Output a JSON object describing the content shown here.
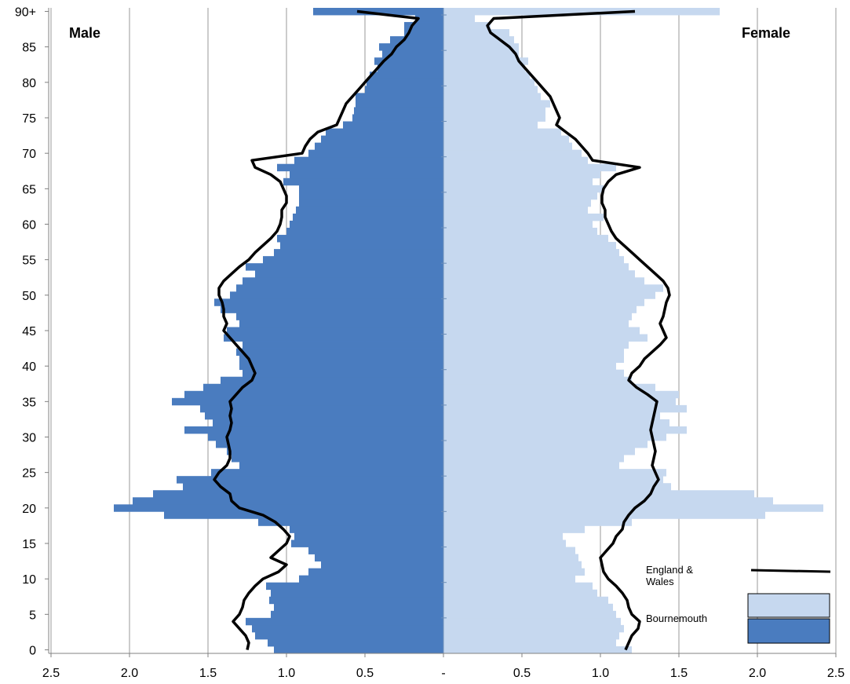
{
  "chart_data": {
    "type": "population-pyramid",
    "left_label": "Male",
    "right_label": "Female",
    "x_axis": {
      "range": [
        -2.5,
        2.5
      ],
      "tick_values": [
        -2.5,
        -2.0,
        -1.5,
        -1.0,
        -0.5,
        0,
        0.5,
        1.0,
        1.5,
        2.0,
        2.5
      ],
      "tick_labels": [
        "2.5",
        "2.0",
        "1.5",
        "1.0",
        "0.5",
        "-",
        "0.5",
        "1.0",
        "1.5",
        "2.0",
        "2.5"
      ],
      "grid": true
    },
    "y_axis": {
      "ages": [
        "0",
        "1",
        "2",
        "3",
        "4",
        "5",
        "6",
        "7",
        "8",
        "9",
        "10",
        "11",
        "12",
        "13",
        "14",
        "15",
        "16",
        "17",
        "18",
        "19",
        "20",
        "21",
        "22",
        "23",
        "24",
        "25",
        "26",
        "27",
        "28",
        "29",
        "30",
        "31",
        "32",
        "33",
        "34",
        "35",
        "36",
        "37",
        "38",
        "39",
        "40",
        "41",
        "42",
        "43",
        "44",
        "45",
        "46",
        "47",
        "48",
        "49",
        "50",
        "51",
        "52",
        "53",
        "54",
        "55",
        "56",
        "57",
        "58",
        "59",
        "60",
        "61",
        "62",
        "63",
        "64",
        "65",
        "66",
        "67",
        "68",
        "69",
        "70",
        "71",
        "72",
        "73",
        "74",
        "75",
        "76",
        "77",
        "78",
        "79",
        "80",
        "81",
        "82",
        "83",
        "84",
        "85",
        "86",
        "87",
        "88",
        "89",
        "90+"
      ],
      "tick_labels": [
        "0",
        "5",
        "10",
        "15",
        "20",
        "25",
        "30",
        "35",
        "40",
        "45",
        "50",
        "55",
        "60",
        "65",
        "70",
        "75",
        "80",
        "85",
        "90+"
      ],
      "tick_ages": [
        0,
        5,
        10,
        15,
        20,
        25,
        30,
        35,
        40,
        45,
        50,
        55,
        60,
        65,
        70,
        75,
        80,
        85,
        90
      ]
    },
    "legend": [
      {
        "label": "England & Wales",
        "marker": "line",
        "color": "#000000"
      },
      {
        "label": "Bournemouth",
        "marker": "box",
        "colors": [
          "#c6d8ef",
          "#4a7cbf"
        ]
      }
    ],
    "series": [
      {
        "name": "Bournemouth",
        "sex": "Male",
        "color": "#4a7cbf",
        "values": [
          1.08,
          1.12,
          1.2,
          1.22,
          1.26,
          1.1,
          1.08,
          1.11,
          1.1,
          1.13,
          0.92,
          0.86,
          0.78,
          0.82,
          0.86,
          0.97,
          0.95,
          0.98,
          1.18,
          1.78,
          2.1,
          1.98,
          1.85,
          1.66,
          1.7,
          1.48,
          1.3,
          1.35,
          1.38,
          1.45,
          1.5,
          1.65,
          1.47,
          1.52,
          1.55,
          1.73,
          1.65,
          1.53,
          1.42,
          1.28,
          1.3,
          1.3,
          1.32,
          1.28,
          1.4,
          1.38,
          1.3,
          1.32,
          1.42,
          1.46,
          1.36,
          1.32,
          1.28,
          1.2,
          1.26,
          1.15,
          1.08,
          1.04,
          1.06,
          1.0,
          0.98,
          0.96,
          0.94,
          0.92,
          0.92,
          0.92,
          1.02,
          0.98,
          1.06,
          0.95,
          0.86,
          0.82,
          0.78,
          0.75,
          0.64,
          0.58,
          0.57,
          0.56,
          0.56,
          0.5,
          0.49,
          0.47,
          0.42,
          0.44,
          0.39,
          0.41,
          0.34,
          0.25,
          0.25,
          0.18,
          0.83
        ]
      },
      {
        "name": "Bournemouth",
        "sex": "Female",
        "color": "#c6d8ef",
        "values": [
          1.2,
          1.1,
          1.12,
          1.15,
          1.13,
          1.1,
          1.08,
          1.05,
          0.98,
          0.95,
          0.84,
          0.9,
          0.88,
          0.86,
          0.84,
          0.78,
          0.76,
          0.9,
          1.2,
          2.05,
          2.42,
          2.1,
          1.98,
          1.45,
          1.4,
          1.42,
          1.12,
          1.15,
          1.22,
          1.3,
          1.42,
          1.55,
          1.44,
          1.38,
          1.55,
          1.48,
          1.5,
          1.35,
          1.2,
          1.15,
          1.1,
          1.15,
          1.15,
          1.18,
          1.3,
          1.25,
          1.18,
          1.2,
          1.23,
          1.28,
          1.35,
          1.4,
          1.28,
          1.22,
          1.18,
          1.15,
          1.12,
          1.1,
          1.05,
          0.98,
          0.95,
          1.02,
          0.92,
          0.94,
          0.98,
          1.02,
          0.95,
          1.0,
          1.1,
          0.92,
          0.88,
          0.82,
          0.8,
          0.75,
          0.6,
          0.65,
          0.65,
          0.68,
          0.62,
          0.6,
          0.58,
          0.55,
          0.52,
          0.54,
          0.48,
          0.48,
          0.45,
          0.42,
          0.3,
          0.2,
          1.76
        ]
      },
      {
        "name": "England & Wales",
        "sex": "Male",
        "color": "#000000",
        "values": [
          1.25,
          1.24,
          1.26,
          1.3,
          1.34,
          1.3,
          1.28,
          1.27,
          1.24,
          1.2,
          1.15,
          1.05,
          1.0,
          1.1,
          1.05,
          1.0,
          0.98,
          1.02,
          1.07,
          1.15,
          1.3,
          1.35,
          1.36,
          1.42,
          1.46,
          1.43,
          1.38,
          1.36,
          1.36,
          1.37,
          1.38,
          1.36,
          1.35,
          1.36,
          1.35,
          1.36,
          1.32,
          1.28,
          1.22,
          1.2,
          1.22,
          1.24,
          1.28,
          1.32,
          1.36,
          1.4,
          1.38,
          1.4,
          1.4,
          1.41,
          1.43,
          1.43,
          1.4,
          1.35,
          1.3,
          1.24,
          1.2,
          1.15,
          1.1,
          1.06,
          1.04,
          1.03,
          1.03,
          1.0,
          1.0,
          1.02,
          1.04,
          1.1,
          1.2,
          1.22,
          0.9,
          0.88,
          0.85,
          0.8,
          0.68,
          0.66,
          0.64,
          0.62,
          0.58,
          0.54,
          0.5,
          0.46,
          0.42,
          0.38,
          0.33,
          0.3,
          0.25,
          0.22,
          0.2,
          0.16,
          0.55
        ]
      },
      {
        "name": "England & Wales",
        "sex": "Female",
        "color": "#000000",
        "values": [
          1.16,
          1.18,
          1.2,
          1.24,
          1.25,
          1.2,
          1.18,
          1.17,
          1.14,
          1.1,
          1.05,
          1.02,
          1.01,
          1.0,
          1.04,
          1.08,
          1.1,
          1.14,
          1.15,
          1.18,
          1.22,
          1.28,
          1.32,
          1.34,
          1.37,
          1.35,
          1.33,
          1.34,
          1.35,
          1.34,
          1.33,
          1.32,
          1.33,
          1.34,
          1.35,
          1.36,
          1.3,
          1.23,
          1.18,
          1.2,
          1.25,
          1.28,
          1.33,
          1.38,
          1.42,
          1.4,
          1.38,
          1.4,
          1.41,
          1.42,
          1.44,
          1.43,
          1.4,
          1.35,
          1.3,
          1.25,
          1.2,
          1.15,
          1.1,
          1.07,
          1.05,
          1.03,
          1.03,
          1.01,
          1.01,
          1.02,
          1.05,
          1.1,
          1.25,
          0.95,
          0.92,
          0.88,
          0.84,
          0.78,
          0.72,
          0.74,
          0.72,
          0.7,
          0.68,
          0.64,
          0.6,
          0.56,
          0.52,
          0.48,
          0.46,
          0.42,
          0.36,
          0.3,
          0.28,
          0.32,
          1.22
        ]
      }
    ]
  }
}
